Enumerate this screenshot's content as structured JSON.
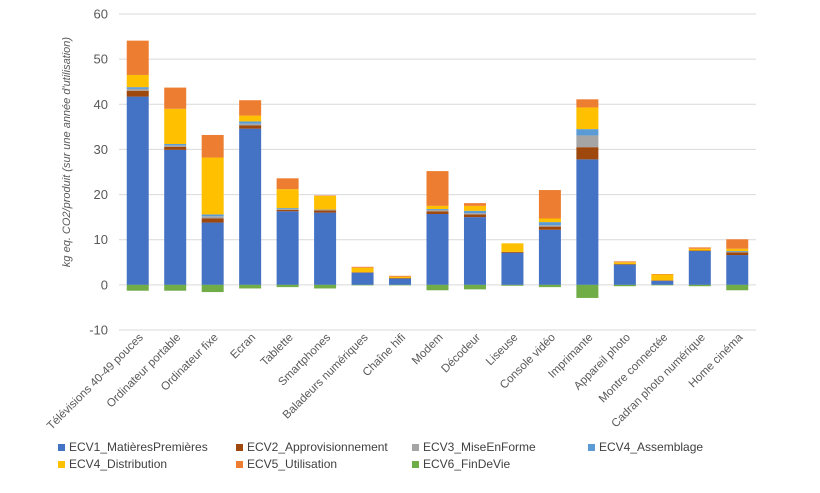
{
  "chart_data": {
    "type": "bar",
    "stacked": true,
    "title": "",
    "xlabel": "",
    "ylabel": "kg eq. CO2/produit (sur une année d'utilisation)",
    "ylim": [
      -10,
      60
    ],
    "yticks": [
      -10,
      0,
      10,
      20,
      30,
      40,
      50,
      60
    ],
    "grid": true,
    "legend_position": "bottom",
    "categories": [
      "Télévisions 40-49 pouces",
      "Ordinateur portable",
      "Ordinateur fixe",
      "Ecran",
      "Tablette",
      "Smartphones",
      "Baladeurs numériques",
      "Chaîne hifi",
      "Modem",
      "Décodeur",
      "Liseuse",
      "Console vidéo",
      "Imprimante",
      "Appareil photo",
      "Montre connectée",
      "Cadran photo numérique",
      "Home cinéma"
    ],
    "series": [
      {
        "name": "ECV1_MatièresPremières",
        "color": "#4472C4",
        "values": [
          41.7,
          29.9,
          13.8,
          34.6,
          16.3,
          16.0,
          2.7,
          1.4,
          15.7,
          15.0,
          7.1,
          12.2,
          27.8,
          4.5,
          0.9,
          7.5,
          6.6
        ]
      },
      {
        "name": "ECV2_Approvisionnement",
        "color": "#9E480E",
        "values": [
          1.3,
          0.7,
          0.9,
          0.7,
          0.3,
          0.5,
          0.1,
          0.1,
          0.6,
          0.6,
          0.2,
          0.7,
          2.7,
          0.1,
          0.1,
          0.1,
          0.6
        ]
      },
      {
        "name": "ECV3_MiseEnForme",
        "color": "#A5A5A5",
        "values": [
          0.4,
          0.3,
          0.5,
          0.4,
          0.2,
          0.2,
          0.0,
          0.0,
          0.3,
          0.3,
          0.0,
          0.3,
          2.6,
          0.0,
          0.0,
          0.0,
          0.2
        ]
      },
      {
        "name": "ECV4_Assemblage",
        "color": "#5B9BD5",
        "values": [
          0.4,
          0.3,
          0.4,
          0.5,
          0.2,
          0.0,
          0.0,
          0.0,
          0.2,
          0.5,
          0.0,
          0.7,
          1.4,
          0.0,
          0.0,
          0.0,
          0.1
        ]
      },
      {
        "name": "ECV4_Distribution",
        "color": "#FFC000",
        "values": [
          2.7,
          7.8,
          12.6,
          1.3,
          4.2,
          3.0,
          1.0,
          0.3,
          0.7,
          1.1,
          1.9,
          0.8,
          4.8,
          0.4,
          1.3,
          0.4,
          0.5
        ]
      },
      {
        "name": "ECV5_Utilisation",
        "color": "#ED7D31",
        "values": [
          7.6,
          4.7,
          5.0,
          3.4,
          2.4,
          0.1,
          0.2,
          0.2,
          7.7,
          0.6,
          0.0,
          6.3,
          1.8,
          0.2,
          0.1,
          0.3,
          2.1
        ]
      },
      {
        "name": "ECV6_FinDeVie",
        "color": "#70AD47",
        "values": [
          -1.3,
          -1.3,
          -1.6,
          -0.8,
          -0.5,
          -0.8,
          -0.1,
          -0.1,
          -1.2,
          -1.0,
          -0.2,
          -0.5,
          -2.9,
          -0.3,
          -0.1,
          -0.3,
          -1.2
        ]
      }
    ]
  }
}
